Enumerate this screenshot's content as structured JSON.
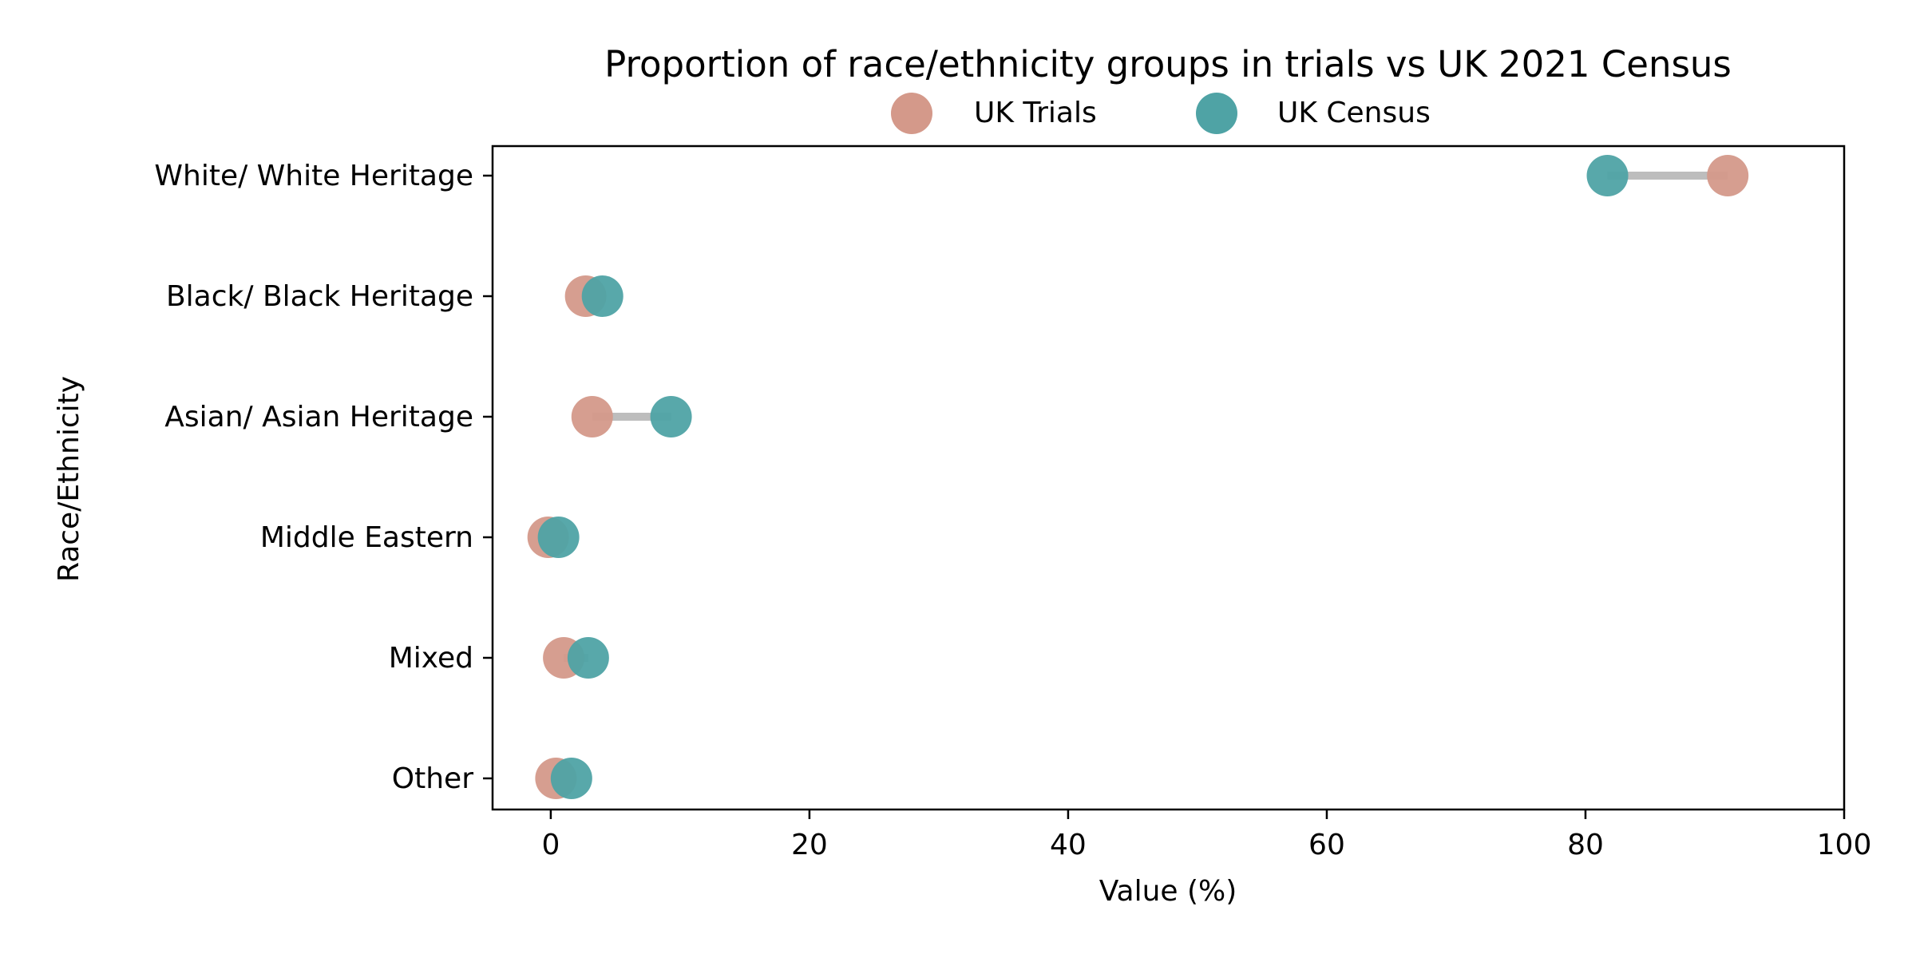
{
  "chart_data": {
    "type": "dumbbell",
    "title": "Proportion of race/ethnicity groups in trials vs UK 2021 Census",
    "xlabel": "Value (%)",
    "ylabel": "Race/Ethnicity",
    "xlim": [
      -4.5,
      100
    ],
    "x_ticks": [
      "0",
      "20",
      "40",
      "60",
      "80",
      "100"
    ],
    "categories": [
      "White/ White Heritage",
      "Black/ Black Heritage",
      "Asian/ Asian Heritage",
      "Middle Eastern",
      "Mixed",
      "Other"
    ],
    "series": [
      {
        "name": "UK Trials",
        "color": "#d4998a",
        "values": [
          91.0,
          2.7,
          3.2,
          -0.2,
          1.0,
          0.4
        ]
      },
      {
        "name": "UK Census",
        "color": "#4fa3a5",
        "values": [
          81.7,
          4.0,
          9.3,
          0.6,
          2.9,
          1.6
        ]
      }
    ],
    "connector_color": "#bdbdbd",
    "legend": "top-center",
    "grid": false
  }
}
